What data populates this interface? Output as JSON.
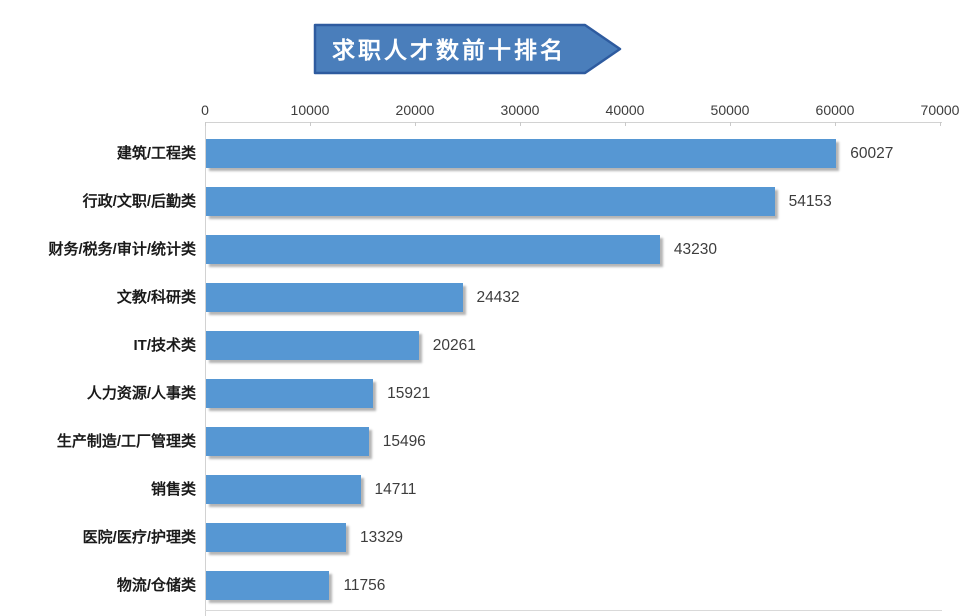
{
  "banner": {
    "title": "求职人才数前十排名",
    "fill_color": "#4A7EBB",
    "border_color": "#2E5B9F",
    "text_color": "#FFFFFF"
  },
  "chart_data": {
    "type": "bar",
    "orientation": "horizontal",
    "title": "求职人才数前十排名",
    "categories": [
      "建筑/工程类",
      "行政/文职/后勤类",
      "财务/税务/审计/统计类",
      "文教/科研类",
      "IT/技术类",
      "人力资源/人事类",
      "生产制造/工厂管理类",
      "销售类",
      "医院/医疗/护理类",
      "物流/仓储类"
    ],
    "values": [
      60027,
      54153,
      43230,
      24432,
      20261,
      15921,
      15496,
      14711,
      13329,
      11756
    ],
    "xlabel": "",
    "ylabel": "",
    "xlim": [
      0,
      70000
    ],
    "x_tick_labels": [
      "0",
      "10000",
      "20000",
      "30000",
      "40000",
      "50000",
      "60000",
      "70000"
    ],
    "grid": false,
    "legend": "none",
    "value_labels_shown": true,
    "bar_color": "#5697D3",
    "axis_line_color": "#D2D2D2",
    "value_label_color": "#3D3D3D",
    "category_label_color": "#1A1A1A"
  }
}
